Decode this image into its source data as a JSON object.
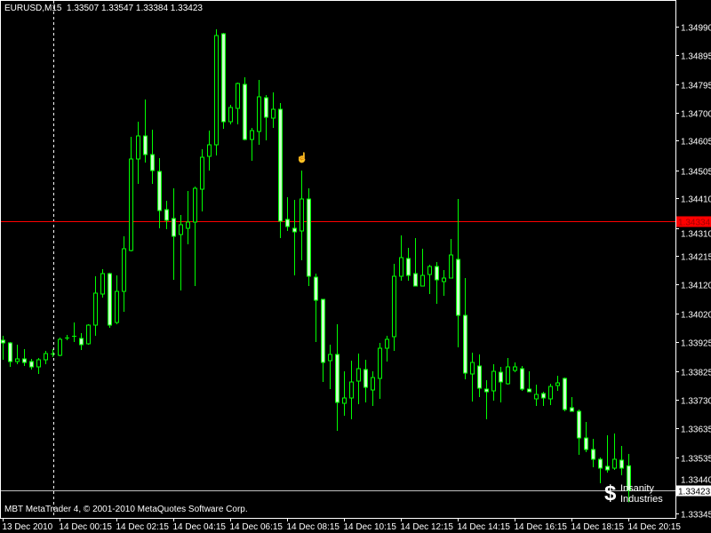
{
  "header": {
    "symbol": "EURUSD,M15",
    "ohlc": "1.33507 1.33547 1.33384 1.33423"
  },
  "footer": {
    "copyright": "MBT MetaTrader 4, © 2001-2010 MetaQuotes Software Corp."
  },
  "logo": {
    "line1": "Insanity",
    "line2": "Industries",
    "symbol": "$"
  },
  "colors": {
    "background": "#000000",
    "candle": "#00ff00",
    "bear_fill": "#c8ffc8",
    "price_line": "#ff0000",
    "bid_line": "#c0c0c0",
    "axis": "#ffffff"
  },
  "chart_data": {
    "type": "candlestick",
    "symbol": "EURUSD",
    "timeframe": "M15",
    "ylim": [
      1.3333,
      1.3507
    ],
    "y_ticks": [
      "1.34990",
      "1.34895",
      "1.34795",
      "1.34700",
      "1.34605",
      "1.34505",
      "1.34410",
      "1.34310",
      "1.34215",
      "1.34120",
      "1.34020",
      "1.33925",
      "1.33825",
      "1.33730",
      "1.33635",
      "1.33535",
      "1.33440",
      "1.33345"
    ],
    "x_ticks": [
      "13 Dec 2010",
      "14 Dec 00:15",
      "14 Dec 02:15",
      "14 Dec 04:15",
      "14 Dec 06:15",
      "14 Dec 08:15",
      "14 Dec 10:15",
      "14 Dec 12:15",
      "14 Dec 14:15",
      "14 Dec 16:15",
      "14 Dec 18:15",
      "14 Dec 20:15"
    ],
    "grid": false,
    "horizontal_line": {
      "price": "1.34334"
    },
    "bid_line": {
      "price": "1.33423"
    },
    "candles_ohlc": [
      [
        1.33931,
        1.33946,
        1.33865,
        1.33922
      ],
      [
        1.33922,
        1.33925,
        1.33841,
        1.33859
      ],
      [
        1.33859,
        1.33916,
        1.3385,
        1.33868
      ],
      [
        1.33868,
        1.33901,
        1.33844,
        1.33856
      ],
      [
        1.33859,
        1.33868,
        1.33832,
        1.33841
      ],
      [
        1.33841,
        1.33871,
        1.33817,
        1.33865
      ],
      [
        1.33865,
        1.33895,
        1.3385,
        1.33886
      ],
      [
        1.33886,
        1.33901,
        1.33874,
        1.33886
      ],
      [
        1.3388,
        1.3394,
        1.33877,
        1.33934
      ],
      [
        1.3394,
        1.33949,
        1.33931,
        1.3394
      ],
      [
        1.33946,
        1.33991,
        1.33925,
        1.33943
      ],
      [
        1.33937,
        1.33955,
        1.33898,
        1.33916
      ],
      [
        1.33919,
        1.33985,
        1.33916,
        1.33982
      ],
      [
        1.33982,
        1.34147,
        1.33946,
        1.3409
      ],
      [
        1.34087,
        1.34171,
        1.34075,
        1.34156
      ],
      [
        1.34156,
        1.34159,
        1.33973,
        1.33982
      ],
      [
        1.33991,
        1.3415,
        1.33985,
        1.34096
      ],
      [
        1.34096,
        1.34282,
        1.34027,
        1.3424
      ],
      [
        1.34234,
        1.34618,
        1.34231,
        1.34543
      ],
      [
        1.34543,
        1.34669,
        1.34459,
        1.34621
      ],
      [
        1.34621,
        1.34744,
        1.34531,
        1.34558
      ],
      [
        1.34558,
        1.34642,
        1.34459,
        1.34504
      ],
      [
        1.34501,
        1.34546,
        1.34309,
        1.34369
      ],
      [
        1.34372,
        1.34402,
        1.34306,
        1.34336
      ],
      [
        1.34342,
        1.34444,
        1.34135,
        1.34282
      ],
      [
        1.34288,
        1.34354,
        1.34099,
        1.34321
      ],
      [
        1.34309,
        1.34435,
        1.34255,
        1.3433
      ],
      [
        1.3433,
        1.3445,
        1.34114,
        1.34444
      ],
      [
        1.34441,
        1.34576,
        1.34366,
        1.34549
      ],
      [
        1.34552,
        1.34639,
        1.34504,
        1.34591
      ],
      [
        1.34591,
        1.34981,
        1.34555,
        1.3496
      ],
      [
        1.34966,
        1.34969,
        1.34645,
        1.34669
      ],
      [
        1.34669,
        1.34726,
        1.3466,
        1.34717
      ],
      [
        1.34714,
        1.34801,
        1.3466,
        1.34798
      ],
      [
        1.34795,
        1.34819,
        1.34606,
        1.34609
      ],
      [
        1.34609,
        1.34648,
        1.34537,
        1.34639
      ],
      [
        1.34636,
        1.3481,
        1.34591,
        1.34753
      ],
      [
        1.3475,
        1.34759,
        1.34606,
        1.34684
      ],
      [
        1.34681,
        1.34768,
        1.34648,
        1.34711
      ],
      [
        1.34711,
        1.34732,
        1.34276,
        1.34333
      ],
      [
        1.34339,
        1.34414,
        1.343,
        1.34315
      ],
      [
        1.34309,
        1.34405,
        1.3415,
        1.34297
      ],
      [
        1.343,
        1.34504,
        1.34201,
        1.34408
      ],
      [
        1.34408,
        1.34444,
        1.34114,
        1.34147
      ],
      [
        1.34144,
        1.34156,
        1.33925,
        1.34066
      ],
      [
        1.34069,
        1.34069,
        1.3379,
        1.33856
      ],
      [
        1.33862,
        1.33916,
        1.33766,
        1.33883
      ],
      [
        1.33883,
        1.33985,
        1.33625,
        1.33721
      ],
      [
        1.33718,
        1.33826,
        1.33676,
        1.33736
      ],
      [
        1.33736,
        1.33862,
        1.33664,
        1.3379
      ],
      [
        1.33793,
        1.33886,
        1.33715,
        1.33835
      ],
      [
        1.33832,
        1.33865,
        1.33721,
        1.33772
      ],
      [
        1.33763,
        1.33826,
        1.33709,
        1.33805
      ],
      [
        1.33802,
        1.33922,
        1.33733,
        1.33904
      ],
      [
        1.33904,
        1.33946,
        1.33859,
        1.33934
      ],
      [
        1.33943,
        1.34189,
        1.33895,
        1.34147
      ],
      [
        1.34147,
        1.34285,
        1.34132,
        1.3421
      ],
      [
        1.34207,
        1.34243,
        1.34132,
        1.3415
      ],
      [
        1.34156,
        1.34276,
        1.34114,
        1.34114
      ],
      [
        1.34114,
        1.3424,
        1.34114,
        1.3415
      ],
      [
        1.34153,
        1.34186,
        1.34087,
        1.3418
      ],
      [
        1.3418,
        1.34195,
        1.34054,
        1.34135
      ],
      [
        1.34129,
        1.34168,
        1.34081,
        1.34141
      ],
      [
        1.34141,
        1.34273,
        1.34141,
        1.34219
      ],
      [
        1.34204,
        1.34408,
        1.33907,
        1.34015
      ],
      [
        1.34015,
        1.34141,
        1.33799,
        1.3382
      ],
      [
        1.33817,
        1.33889,
        1.33724,
        1.33856
      ],
      [
        1.33844,
        1.33883,
        1.33739,
        1.33769
      ],
      [
        1.33766,
        1.33796,
        1.33664,
        1.33757
      ],
      [
        1.3376,
        1.3385,
        1.33727,
        1.33826
      ],
      [
        1.33823,
        1.33841,
        1.33721,
        1.3379
      ],
      [
        1.33784,
        1.33871,
        1.33781,
        1.33841
      ],
      [
        1.33829,
        1.33856,
        1.33823,
        1.33841
      ],
      [
        1.33835,
        1.33844,
        1.3376,
        1.33766
      ],
      [
        1.33766,
        1.33826,
        1.33757,
        1.33757
      ],
      [
        1.33733,
        1.33781,
        1.33709,
        1.33748
      ],
      [
        1.33751,
        1.33757,
        1.33709,
        1.33736
      ],
      [
        1.33733,
        1.33784,
        1.33712,
        1.33775
      ],
      [
        1.33778,
        1.33811,
        1.3376,
        1.33787
      ],
      [
        1.33802,
        1.33805,
        1.33691,
        1.33697
      ],
      [
        1.33703,
        1.33739,
        1.33691,
        1.33691
      ],
      [
        1.33691,
        1.33697,
        1.33544,
        1.33601
      ],
      [
        1.33601,
        1.33655,
        1.33553,
        1.33562
      ],
      [
        1.33562,
        1.33598,
        1.33502,
        1.33529
      ],
      [
        1.33529,
        1.33535,
        1.33448,
        1.33499
      ],
      [
        1.33505,
        1.3361,
        1.33484,
        1.33493
      ],
      [
        1.33499,
        1.33616,
        1.33493,
        1.33529
      ],
      [
        1.33526,
        1.33574,
        1.33475,
        1.33499
      ],
      [
        1.33507,
        1.33547,
        1.33384,
        1.33423
      ]
    ]
  }
}
